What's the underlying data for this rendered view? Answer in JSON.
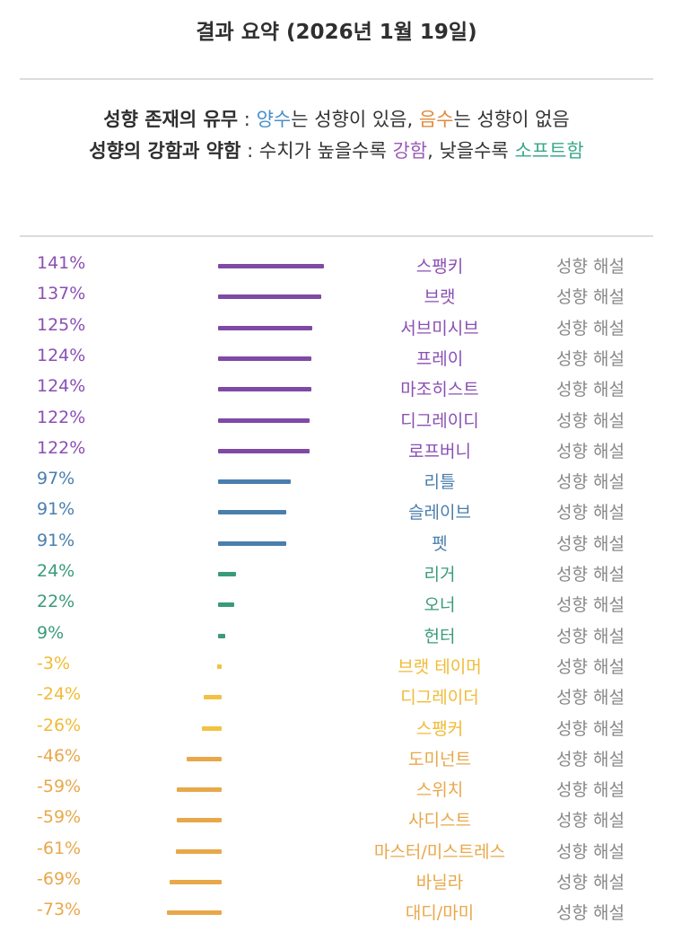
{
  "header": {
    "title": "결과 요약 (2026년 1월 19일)"
  },
  "legend": {
    "line1": {
      "label": "성향 존재의 유무",
      "sep": " : ",
      "positive": "양수",
      "mid": "는 성향이 있음, ",
      "negative": "음수",
      "end": "는 성향이 없음"
    },
    "line2": {
      "label": "성향의 강함과 약함",
      "sep": " : ",
      "text1": "수치가 높을수록 ",
      "strong": "강함",
      "text2": ", 낮을수록 ",
      "soft": "소프트",
      "end": "함"
    },
    "colors": {
      "positive": "#4a90c8",
      "negative": "#e08a3c",
      "strong": "#9b59b6",
      "soft": "#3aa889"
    }
  },
  "link_label": "성향 해설",
  "bar_colors": {
    "purple": "#7e4aa6",
    "blue": "#4a7ead",
    "green": "#3a9b79",
    "yellow": "#f2c242",
    "orange": "#e8a84a"
  },
  "chart_data": {
    "type": "bar",
    "orientation": "horizontal",
    "unit": "%",
    "categories": [
      "스팽키",
      "브랫",
      "서브미시브",
      "프레이",
      "마조히스트",
      "디그레이디",
      "로프버니",
      "리틀",
      "슬레이브",
      "펫",
      "리거",
      "오너",
      "헌터",
      "브랫 테이머",
      "디그레이더",
      "스팽커",
      "도미넌트",
      "스위치",
      "사디스트",
      "마스터/미스트레스",
      "바닐라",
      "대디/마미"
    ],
    "values": [
      141,
      137,
      125,
      124,
      124,
      122,
      122,
      97,
      91,
      91,
      24,
      22,
      9,
      -3,
      -24,
      -26,
      -46,
      -59,
      -59,
      -61,
      -69,
      -73
    ],
    "labels": [
      "141%",
      "137%",
      "125%",
      "124%",
      "124%",
      "122%",
      "122%",
      "97%",
      "91%",
      "91%",
      "24%",
      "22%",
      "9%",
      "-3%",
      "-24%",
      "-26%",
      "-46%",
      "-59%",
      "-59%",
      "-61%",
      "-69%",
      "-73%"
    ],
    "colors": [
      "#7e4aa6",
      "#7e4aa6",
      "#7e4aa6",
      "#7e4aa6",
      "#7e4aa6",
      "#7e4aa6",
      "#7e4aa6",
      "#4a7ead",
      "#4a7ead",
      "#4a7ead",
      "#3a9b79",
      "#3a9b79",
      "#3a9b79",
      "#f2c242",
      "#f2c242",
      "#f2c242",
      "#e8a84a",
      "#e8a84a",
      "#e8a84a",
      "#e8a84a",
      "#e8a84a",
      "#e8a84a"
    ],
    "label_colors": [
      "#8a4fb3",
      "#8a4fb3",
      "#8a4fb3",
      "#8a4fb3",
      "#8a4fb3",
      "#8a4fb3",
      "#8a4fb3",
      "#4a7ead",
      "#4a7ead",
      "#4a7ead",
      "#3a9b79",
      "#3a9b79",
      "#3a9b79",
      "#f0bb36",
      "#f0bb36",
      "#f0bb36",
      "#e8a84a",
      "#e8a84a",
      "#e8a84a",
      "#e8a84a",
      "#e8a84a",
      "#e8a84a"
    ],
    "xlim": [
      -100,
      150
    ]
  }
}
